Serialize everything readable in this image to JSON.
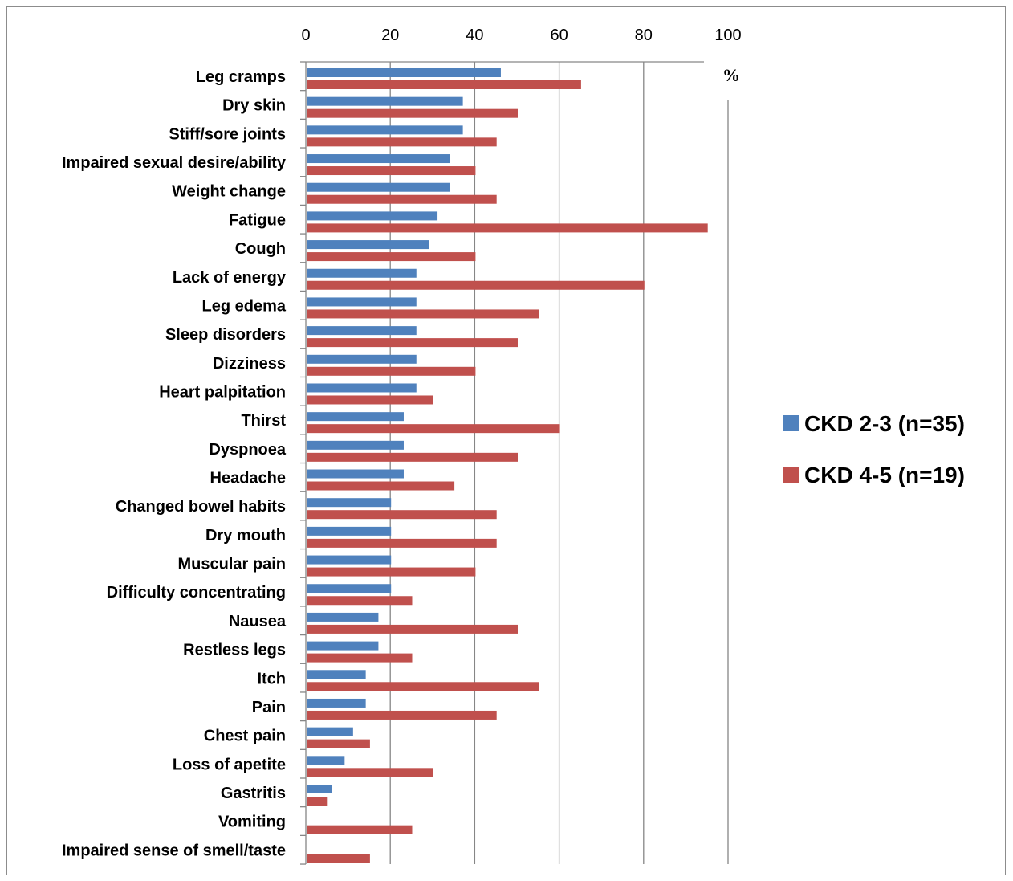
{
  "chart_data": {
    "type": "bar",
    "orientation": "horizontal",
    "xaxis_position": "top",
    "x_unit_label": "%",
    "xlim": [
      0,
      100
    ],
    "x_ticks": [
      "0",
      "20",
      "40",
      "60",
      "80",
      "100"
    ],
    "grid": true,
    "legend_position": "right",
    "categories": [
      "Leg cramps",
      "Dry skin",
      "Stiff/sore joints",
      "Impaired sexual desire/ability",
      "Weight change",
      "Fatigue",
      "Cough",
      "Lack of energy",
      "Leg edema",
      "Sleep disorders",
      "Dizziness",
      "Heart palpitation",
      "Thirst",
      "Dyspnoea",
      "Headache",
      "Changed bowel habits",
      "Dry mouth",
      "Muscular pain",
      "Difficulty concentrating",
      "Nausea",
      "Restless legs",
      "Itch",
      "Pain",
      "Chest pain",
      "Loss of apetite",
      "Gastritis",
      "Vomiting",
      "Impaired sense of smell/taste"
    ],
    "series": [
      {
        "name": "CKD 2-3 (n=35)",
        "color": "#4f81bd",
        "values": [
          46,
          37,
          37,
          34,
          34,
          31,
          29,
          26,
          26,
          26,
          26,
          26,
          23,
          23,
          23,
          20,
          20,
          20,
          20,
          17,
          17,
          14,
          14,
          11,
          9,
          6,
          0,
          0
        ]
      },
      {
        "name": "CKD 4-5 (n=19)",
        "color": "#c0504d",
        "values": [
          65,
          50,
          45,
          40,
          45,
          95,
          40,
          80,
          55,
          50,
          40,
          30,
          60,
          50,
          35,
          45,
          45,
          40,
          25,
          50,
          25,
          55,
          45,
          15,
          30,
          5,
          25,
          15
        ]
      }
    ]
  }
}
